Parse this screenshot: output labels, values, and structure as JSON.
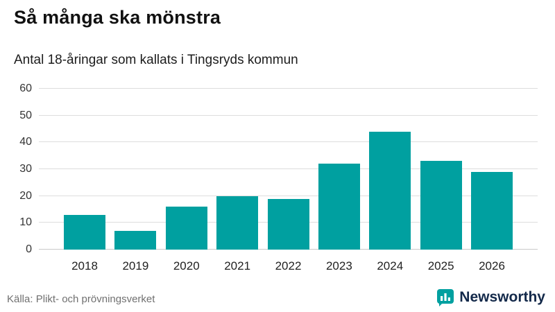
{
  "header": {
    "title": "Så många ska mönstra",
    "subtitle": "Antal 18-åringar som kallats i Tingsryds kommun"
  },
  "chart_data": {
    "type": "bar",
    "title": "Så många ska mönstra",
    "subtitle": "Antal 18-åringar som kallats i Tingsryds kommun",
    "categories": [
      "2018",
      "2019",
      "2020",
      "2021",
      "2022",
      "2023",
      "2024",
      "2025",
      "2026"
    ],
    "values": [
      13,
      7,
      16,
      20,
      19,
      32,
      44,
      33,
      29
    ],
    "xlabel": "",
    "ylabel": "",
    "ylim": [
      0,
      60
    ],
    "yticks": [
      0,
      10,
      20,
      30,
      40,
      50,
      60
    ],
    "grid": true,
    "legend": "none",
    "bar_color": "#00a0a0"
  },
  "footer": {
    "source": "Källa: Plikt- och prövningsverket",
    "brand": "Newsworthy"
  },
  "colors": {
    "accent": "#00a0a0",
    "brand_text": "#13294a",
    "grid": "#dddddd",
    "axis_text": "#333333",
    "source_text": "#707070"
  }
}
